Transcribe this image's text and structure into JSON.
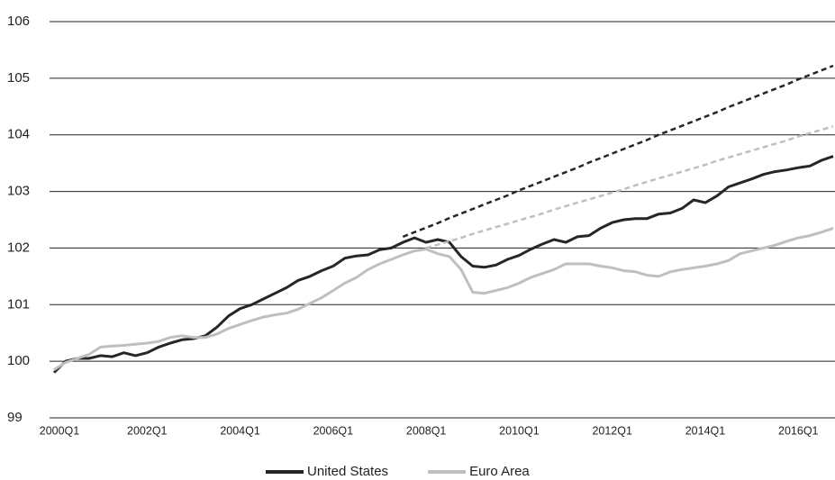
{
  "chart_data": {
    "type": "line",
    "categories": [
      "2000Q1",
      null,
      null,
      null,
      null,
      null,
      null,
      null,
      "2002Q1",
      null,
      null,
      null,
      null,
      null,
      null,
      null,
      "2004Q1",
      null,
      null,
      null,
      null,
      null,
      null,
      null,
      "2006Q1",
      null,
      null,
      null,
      null,
      null,
      null,
      null,
      "2008Q1",
      null,
      null,
      null,
      null,
      null,
      null,
      null,
      "2010Q1",
      null,
      null,
      null,
      null,
      null,
      null,
      null,
      "2012Q1",
      null,
      null,
      null,
      null,
      null,
      null,
      null,
      "2014Q1",
      null,
      null,
      null,
      null,
      null,
      null,
      null,
      "2016Q1",
      null,
      null,
      null
    ],
    "series": [
      {
        "name": "United States",
        "color": "#262626",
        "values": [
          99.8,
          100.0,
          100.05,
          100.05,
          100.1,
          100.08,
          100.15,
          100.1,
          100.15,
          100.25,
          100.32,
          100.38,
          100.4,
          100.45,
          100.6,
          100.8,
          100.93,
          101.0,
          101.1,
          101.2,
          101.3,
          101.43,
          101.5,
          101.6,
          101.68,
          101.82,
          101.86,
          101.88,
          101.97,
          102.0,
          102.1,
          102.18,
          102.1,
          102.15,
          102.1,
          101.85,
          101.68,
          101.66,
          101.7,
          101.8,
          101.87,
          101.98,
          102.07,
          102.15,
          102.1,
          102.2,
          102.22,
          102.35,
          102.45,
          102.5,
          102.52,
          102.52,
          102.6,
          102.62,
          102.7,
          102.85,
          102.8,
          102.92,
          103.08,
          103.15,
          103.22,
          103.3,
          103.35,
          103.38,
          103.42,
          103.45,
          103.55,
          103.62
        ]
      },
      {
        "name": "Euro Area",
        "color": "#bfbfbf",
        "values": [
          99.85,
          99.98,
          100.05,
          100.12,
          100.25,
          100.27,
          100.28,
          100.3,
          100.32,
          100.35,
          100.42,
          100.45,
          100.42,
          100.42,
          100.48,
          100.58,
          100.65,
          100.72,
          100.78,
          100.82,
          100.85,
          100.92,
          101.02,
          101.12,
          101.25,
          101.38,
          101.48,
          101.62,
          101.72,
          101.8,
          101.88,
          101.95,
          101.98,
          101.9,
          101.85,
          101.62,
          101.22,
          101.2,
          101.25,
          101.3,
          101.38,
          101.48,
          101.55,
          101.62,
          101.72,
          101.72,
          101.72,
          101.68,
          101.65,
          101.6,
          101.58,
          101.52,
          101.5,
          101.58,
          101.62,
          101.65,
          101.68,
          101.72,
          101.78,
          101.9,
          101.95,
          102.0,
          102.05,
          102.12,
          102.18,
          102.22,
          102.28,
          102.35
        ]
      },
      {
        "color": "#262626",
        "dash": true,
        "values": [
          null,
          null,
          null,
          null,
          null,
          null,
          null,
          null,
          null,
          null,
          null,
          null,
          null,
          null,
          null,
          null,
          null,
          null,
          null,
          null,
          null,
          null,
          null,
          null,
          null,
          null,
          null,
          null,
          null,
          null,
          102.2,
          102.28,
          102.36,
          102.44,
          102.53,
          102.61,
          102.69,
          102.77,
          102.85,
          102.93,
          103.02,
          103.1,
          103.18,
          103.26,
          103.34,
          103.42,
          103.51,
          103.59,
          103.67,
          103.75,
          103.83,
          103.91,
          104.0,
          104.08,
          104.16,
          104.24,
          104.32,
          104.4,
          104.49,
          104.57,
          104.65,
          104.73,
          104.81,
          104.89,
          104.98,
          105.06,
          105.14,
          105.22
        ]
      },
      {
        "color": "#bfbfbf",
        "dash": true,
        "values": [
          null,
          null,
          null,
          null,
          null,
          null,
          null,
          null,
          null,
          null,
          null,
          null,
          null,
          null,
          null,
          null,
          null,
          null,
          null,
          null,
          null,
          null,
          null,
          null,
          null,
          null,
          null,
          null,
          null,
          null,
          null,
          null,
          102.0,
          102.06,
          102.12,
          102.18,
          102.25,
          102.31,
          102.37,
          102.43,
          102.49,
          102.55,
          102.61,
          102.68,
          102.74,
          102.8,
          102.86,
          102.92,
          102.98,
          103.04,
          103.11,
          103.17,
          103.23,
          103.29,
          103.35,
          103.41,
          103.47,
          103.54,
          103.6,
          103.66,
          103.72,
          103.78,
          103.84,
          103.9,
          103.97,
          104.03,
          104.09,
          104.15
        ]
      }
    ],
    "ylim": [
      99,
      106
    ],
    "yticks": [
      99,
      100,
      101,
      102,
      103,
      104,
      105,
      106
    ],
    "grid": true,
    "legend": "bottom"
  }
}
